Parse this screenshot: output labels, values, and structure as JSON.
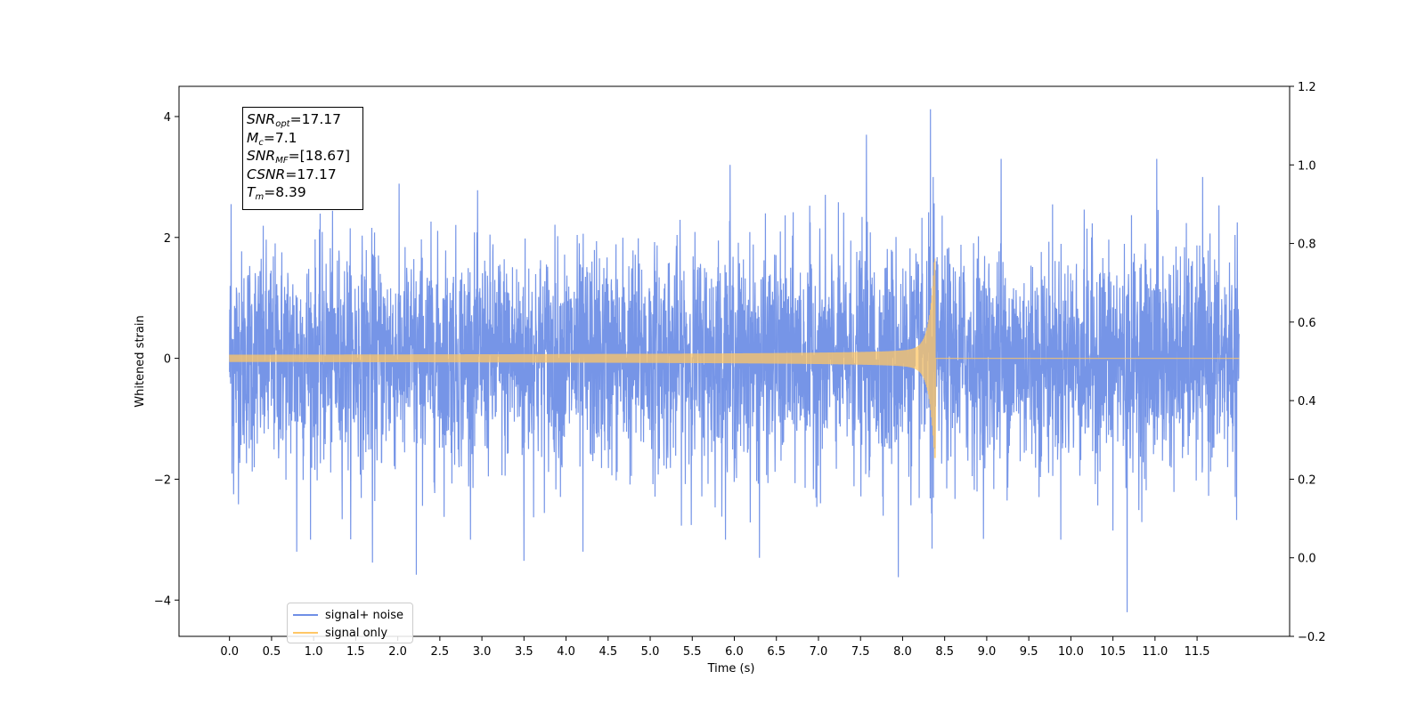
{
  "chart_data": {
    "type": "line",
    "title": "",
    "xlabel": "Time (s)",
    "ylabel": "Whitened strain",
    "xlim": [
      -0.6,
      12.6
    ],
    "ylim": [
      -4.6,
      4.5
    ],
    "y2lim": [
      -0.2,
      1.2
    ],
    "x_ticks": [
      "0.0",
      "0.5",
      "1.0",
      "1.5",
      "2.0",
      "2.5",
      "3.0",
      "3.5",
      "4.0",
      "4.5",
      "5.0",
      "5.5",
      "6.0",
      "6.5",
      "7.0",
      "7.5",
      "8.0",
      "8.5",
      "9.0",
      "9.5",
      "10.0",
      "10.5",
      "11.0",
      "11.5"
    ],
    "y_ticks": [
      "4",
      "2",
      "0",
      "−2",
      "−4"
    ],
    "y_tick_values": [
      4,
      2,
      0,
      -2,
      -4
    ],
    "y2_ticks": [
      "1.2",
      "1.0",
      "0.8",
      "0.6",
      "0.4",
      "0.2",
      "0.0",
      "−0.2"
    ],
    "y2_tick_values": [
      1.2,
      1.0,
      0.8,
      0.6,
      0.4,
      0.2,
      0.0,
      -0.2
    ],
    "grid": false,
    "legend_position": "bottom-left",
    "series": [
      {
        "name": "signal+ noise",
        "color": "#6f8fe6",
        "description_stats": {
          "t_start": 0.0,
          "t_end": 12.0,
          "typical_std": 0.9,
          "max": 4.12,
          "max_at": 8.34,
          "min": -4.2,
          "min_at": 10.67
        },
        "peaks": [
          {
            "t": 0.02,
            "v": 2.55
          },
          {
            "t": 0.05,
            "v": -2.25
          },
          {
            "t": 0.8,
            "v": -3.2
          },
          {
            "t": 1.7,
            "v": -3.38
          },
          {
            "t": 2.22,
            "v": -3.58
          },
          {
            "t": 3.5,
            "v": -3.35
          },
          {
            "t": 4.2,
            "v": -3.2
          },
          {
            "t": 5.95,
            "v": 3.2
          },
          {
            "t": 6.3,
            "v": -3.3
          },
          {
            "t": 7.57,
            "v": 3.7
          },
          {
            "t": 7.95,
            "v": -3.62
          },
          {
            "t": 8.33,
            "v": 4.12
          },
          {
            "t": 8.35,
            "v": -3.15
          },
          {
            "t": 9.17,
            "v": 3.3
          },
          {
            "t": 10.5,
            "v": -2.85
          },
          {
            "t": 10.67,
            "v": -4.2
          },
          {
            "t": 11.02,
            "v": 3.3
          }
        ]
      },
      {
        "name": "signal only",
        "color": "#ffc766",
        "description_stats": {
          "t_start": 0.0,
          "t_merger": 8.39,
          "t_end": 12.0,
          "amplitude_start": 0.06,
          "amplitude_peak": 1.65,
          "post_merger_value": 0.0
        }
      }
    ]
  },
  "info_box": {
    "snr_opt_sym": "SNR",
    "snr_opt_sub": "opt",
    "snr_opt_val": "=17.17",
    "mc_sym": "M",
    "mc_sub": "c",
    "mc_val": "=7.1",
    "snr_mf_sym": "SNR",
    "snr_mf_sub": "MF",
    "snr_mf_val": "=[18.67]",
    "csnr_sym": "CSNR",
    "csnr_val": "=17.17",
    "tm_sym": "T",
    "tm_sub": "m",
    "tm_val": "=8.39"
  },
  "legend": {
    "items": [
      {
        "label": "signal+ noise",
        "color": "#6f8fe6"
      },
      {
        "label": "signal only",
        "color": "#ffc766"
      }
    ]
  }
}
